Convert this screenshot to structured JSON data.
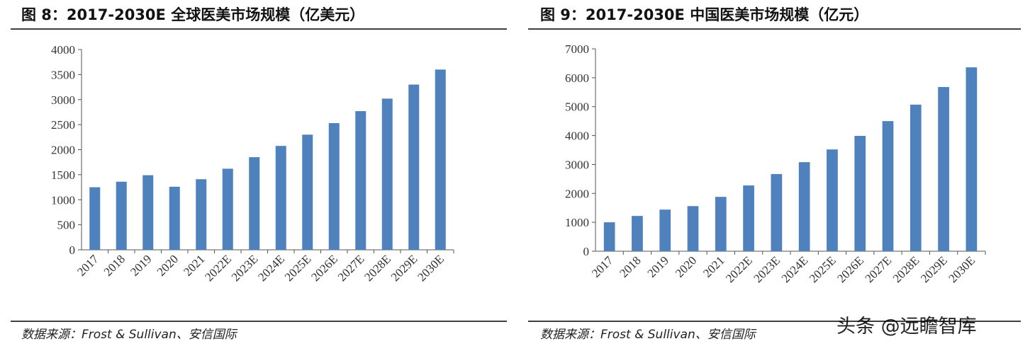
{
  "chart_data": [
    {
      "type": "bar",
      "title": "图 8：2017-2030E 全球医美市场规模（亿美元）",
      "categories": [
        "2017",
        "2018",
        "2019",
        "2020",
        "2021",
        "2022E",
        "2023E",
        "2024E",
        "2025E",
        "2026E",
        "2027E",
        "2028E",
        "2029E",
        "2030E"
      ],
      "values": [
        1250,
        1360,
        1490,
        1260,
        1410,
        1620,
        1850,
        2075,
        2300,
        2530,
        2770,
        3020,
        3300,
        3600
      ],
      "color": "#4f81bd",
      "ylim": [
        0,
        4000
      ],
      "yticks": [
        0,
        500,
        1000,
        1500,
        2000,
        2500,
        3000,
        3500,
        4000
      ],
      "source": "数据来源：Frost & Sullivan、安信国际"
    },
    {
      "type": "bar",
      "title": "图 9：2017-2030E 中国医美市场规模（亿元）",
      "categories": [
        "2017",
        "2018",
        "2019",
        "2020",
        "2021",
        "2022E",
        "2023E",
        "2024E",
        "2025E",
        "2026E",
        "2027E",
        "2028E",
        "2029E",
        "2030E"
      ],
      "values": [
        1000,
        1220,
        1440,
        1560,
        1880,
        2275,
        2670,
        3080,
        3520,
        3990,
        4500,
        5070,
        5680,
        6360
      ],
      "color": "#4f81bd",
      "ylim": [
        0,
        7000
      ],
      "yticks": [
        0,
        1000,
        2000,
        3000,
        4000,
        5000,
        6000,
        7000
      ],
      "source": "数据来源：Frost & Sullivan、安信国际"
    }
  ],
  "watermark": "头条 @远瞻智库"
}
